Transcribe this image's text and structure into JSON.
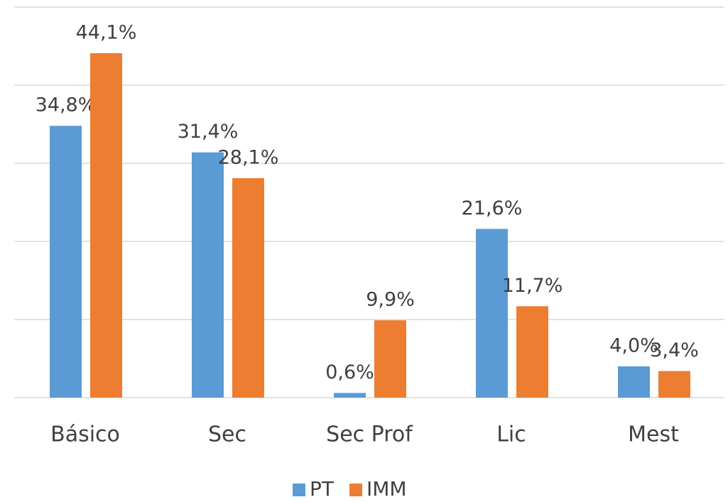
{
  "chart_data": {
    "type": "bar",
    "categories": [
      "Básico",
      "Sec",
      "Sec Prof",
      "Lic",
      "Mest"
    ],
    "series": [
      {
        "name": "PT",
        "color": "#5b9bd5",
        "values": [
          34.8,
          31.4,
          0.6,
          21.6,
          4.0
        ],
        "value_labels": [
          "34,8%",
          "31,4%",
          "0,6%",
          "21,6%",
          "4,0%"
        ]
      },
      {
        "name": "IMM",
        "color": "#ed7d31",
        "values": [
          44.1,
          28.1,
          9.9,
          11.7,
          3.4
        ],
        "value_labels": [
          "44,1%",
          "28,1%",
          "9,9%",
          "11,7%",
          "3,4%"
        ]
      }
    ],
    "ylim": [
      0,
      50
    ],
    "yticks": [
      0,
      10,
      20,
      30,
      40,
      50
    ],
    "grid": true,
    "legend": "bottom"
  }
}
